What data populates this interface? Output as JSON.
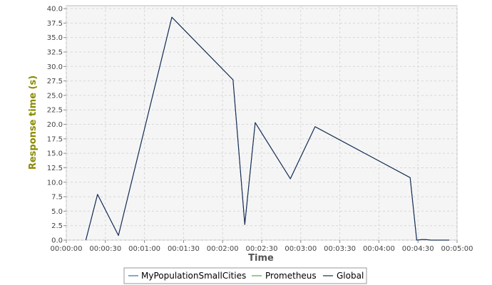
{
  "chart_data": {
    "type": "line",
    "xlabel": "Time",
    "ylabel": "Response time (s)",
    "x_ticks": [
      "00:00:00",
      "00:00:30",
      "00:01:00",
      "00:01:30",
      "00:02:00",
      "00:02:30",
      "00:03:00",
      "00:03:30",
      "00:04:00",
      "00:04:30",
      "00:05:00"
    ],
    "y_ticks": [
      "0.0",
      "2.5",
      "5.0",
      "7.5",
      "10.0",
      "12.5",
      "15.0",
      "17.5",
      "20.0",
      "22.5",
      "25.0",
      "27.5",
      "30.0",
      "32.5",
      "35.0",
      "37.5",
      "40.0"
    ],
    "xlim_seconds": [
      0,
      300
    ],
    "ylim": [
      0,
      40.5
    ],
    "grid": true,
    "legend_position": "bottom",
    "colors": {
      "plot_background": "#f5f5f5",
      "grid": "#d8d8d8",
      "axis_title": "#8a8a00",
      "xlabel": "#555555"
    },
    "series": [
      {
        "name": "MyPopulationSmallCities",
        "color": "#3a6ea5",
        "x_seconds": [
          15,
          24,
          40,
          81,
          128,
          137,
          145,
          172,
          191,
          264,
          269,
          273,
          276,
          280,
          294
        ],
        "y": [
          0.0,
          7.9,
          0.8,
          38.5,
          27.7,
          2.7,
          20.3,
          10.6,
          19.6,
          10.8,
          0.0,
          0.1,
          0.1,
          0.0,
          0.0
        ]
      },
      {
        "name": "Prometheus",
        "color": "#55aa33",
        "x_seconds": [],
        "y": []
      },
      {
        "name": "Global",
        "color": "#1a2a4a",
        "x_seconds": [
          15,
          24,
          40,
          81,
          128,
          137,
          145,
          172,
          191,
          264,
          269,
          273,
          276,
          280,
          294
        ],
        "y": [
          0.0,
          7.9,
          0.8,
          38.5,
          27.7,
          2.7,
          20.3,
          10.6,
          19.6,
          10.8,
          0.0,
          0.1,
          0.1,
          0.0,
          0.0
        ]
      }
    ]
  }
}
